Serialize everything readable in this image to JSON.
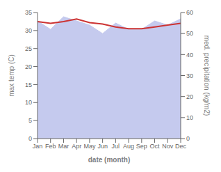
{
  "chart_data": {
    "type": "line",
    "categories": [
      "Jan",
      "Feb",
      "Mar",
      "Apr",
      "May",
      "Jun",
      "Jul",
      "Aug",
      "Sep",
      "Oct",
      "Nov",
      "Dec"
    ],
    "series": [
      {
        "type": "area",
        "axis": "y2",
        "color": "#c5caee",
        "values": [
          56.0,
          52.0,
          58.0,
          56.0,
          54.0,
          50.0,
          55.0,
          52.0,
          52.0,
          56.0,
          54.0,
          57.0
        ]
      },
      {
        "type": "line",
        "axis": "y",
        "color": "#cc3333",
        "values": [
          32.5,
          32.0,
          32.5,
          33.2,
          32.2,
          31.8,
          31.0,
          30.5,
          30.5,
          31.0,
          31.5,
          32.0
        ]
      }
    ],
    "xlabel": "date (month)",
    "ylabel": "max temp (C)",
    "y2label": "med. precipitation (kg/m2)",
    "ylim": [
      0,
      35
    ],
    "yticks": [
      0,
      5,
      10,
      15,
      20,
      25,
      30,
      35
    ],
    "y2lim": [
      0,
      60
    ],
    "y2ticks": [
      0,
      10,
      20,
      30,
      40,
      50,
      60
    ],
    "grid": false
  }
}
